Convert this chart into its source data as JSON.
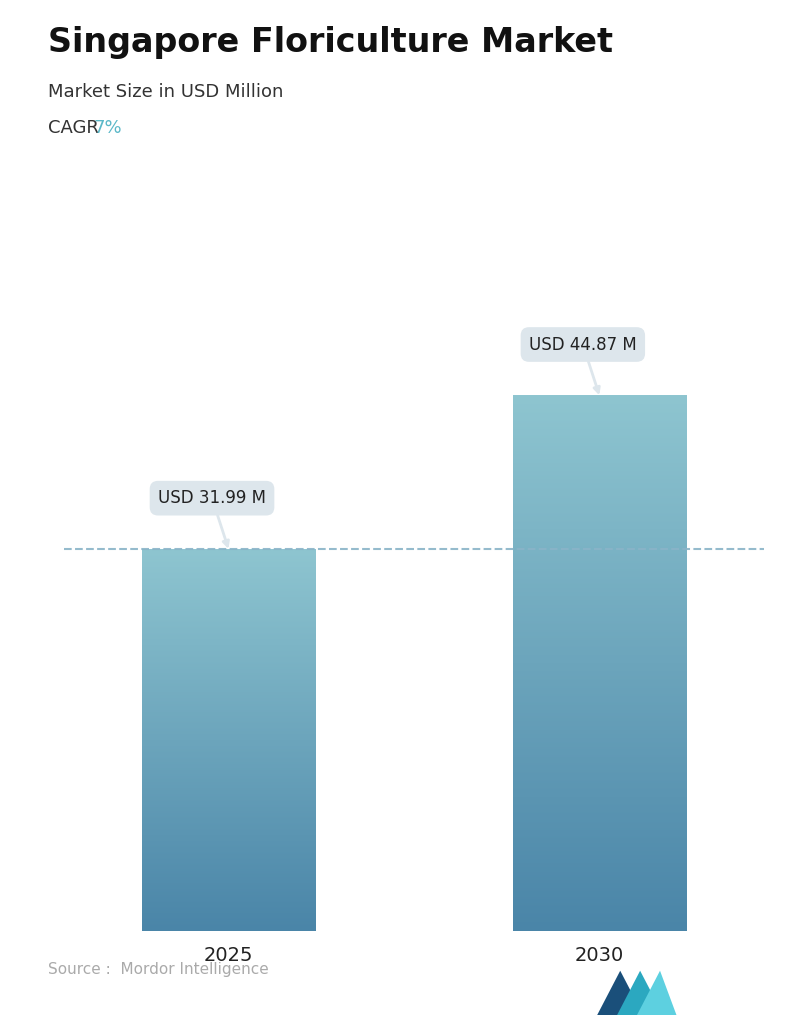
{
  "title": "Singapore Floriculture Market",
  "subtitle": "Market Size in USD Million",
  "cagr_label": "CAGR  ",
  "cagr_value": "7%",
  "cagr_color": "#5bb8c8",
  "categories": [
    "2025",
    "2030"
  ],
  "values": [
    31.99,
    44.87
  ],
  "bar_labels": [
    "USD 31.99 M",
    "USD 44.87 M"
  ],
  "bar_top_color": "#8ec5d0",
  "bar_bottom_color": "#4a85a8",
  "dashed_line_y": 31.99,
  "dashed_line_color": "#8ab4c8",
  "background_color": "#ffffff",
  "title_fontsize": 24,
  "subtitle_fontsize": 13,
  "cagr_fontsize": 13,
  "xlabel_fontsize": 14,
  "label_fontsize": 12,
  "source_text": "Source :  Mordor Intelligence",
  "source_color": "#aaaaaa",
  "ylim": [
    0,
    52
  ],
  "bar_width": 0.42,
  "tooltip_bg": "#dde6ec",
  "tooltip_text_color": "#222222",
  "x_positions": [
    0.35,
    1.25
  ],
  "xlim": [
    -0.05,
    1.65
  ]
}
